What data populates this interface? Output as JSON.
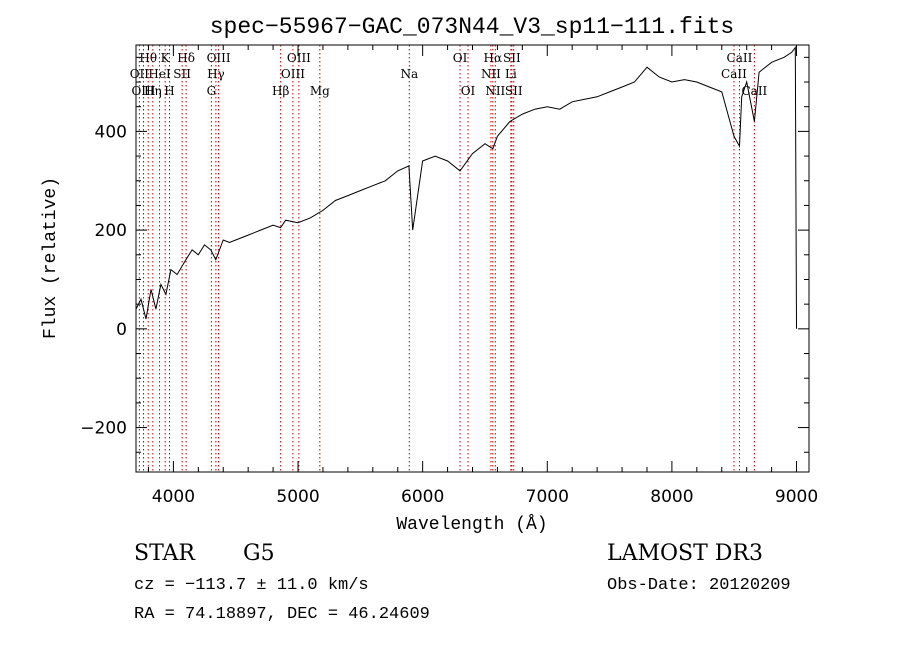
{
  "chart_data": {
    "type": "line",
    "title": "spec−55967−GAC_073N44_V3_sp11−111.fits",
    "xlabel": "Wavelength (Å)",
    "ylabel": "Flux (relative)",
    "xlim": [
      3700,
      9100
    ],
    "ylim": [
      -290,
      575
    ],
    "x_ticks": [
      4000,
      5000,
      6000,
      7000,
      8000,
      9000
    ],
    "x_tick_labels": [
      "4000",
      "5000",
      "6000",
      "7000",
      "8000",
      "9000"
    ],
    "y_ticks": [
      -200,
      0,
      200,
      400
    ],
    "y_tick_labels": [
      "−200",
      "0",
      "200",
      "400"
    ],
    "x_minor_step": 200,
    "y_minor_step": 50,
    "series": [
      {
        "name": "flux",
        "color": "#000000",
        "x": [
          3700,
          3740,
          3780,
          3820,
          3860,
          3900,
          3940,
          3980,
          4030,
          4100,
          4150,
          4200,
          4250,
          4300,
          4340,
          4400,
          4450,
          4500,
          4600,
          4700,
          4800,
          4860,
          4900,
          5000,
          5100,
          5200,
          5300,
          5400,
          5500,
          5600,
          5700,
          5800,
          5890,
          5920,
          6000,
          6100,
          6200,
          6300,
          6400,
          6500,
          6563,
          6600,
          6700,
          6800,
          6900,
          7000,
          7100,
          7200,
          7300,
          7400,
          7500,
          7600,
          7700,
          7800,
          7900,
          8000,
          8100,
          8200,
          8300,
          8400,
          8498,
          8542,
          8560,
          8600,
          8662,
          8700,
          8800,
          8900,
          8960,
          8990,
          9000
        ],
        "y": [
          40,
          60,
          20,
          80,
          40,
          90,
          70,
          120,
          110,
          140,
          160,
          150,
          170,
          160,
          140,
          180,
          175,
          180,
          190,
          200,
          210,
          205,
          220,
          215,
          225,
          240,
          260,
          270,
          280,
          290,
          300,
          320,
          330,
          200,
          340,
          350,
          340,
          320,
          355,
          375,
          365,
          390,
          420,
          435,
          445,
          450,
          445,
          460,
          465,
          470,
          480,
          490,
          500,
          530,
          510,
          500,
          505,
          500,
          490,
          480,
          390,
          370,
          470,
          500,
          420,
          520,
          540,
          550,
          560,
          570,
          0
        ]
      }
    ],
    "spectral_lines": [
      {
        "label": "Hθ",
        "wavelength": 3798,
        "row": 1
      },
      {
        "label": "OII",
        "wavelength": 3727,
        "row": 2
      },
      {
        "label": "OIII",
        "wavelength": 3760,
        "row": 3
      },
      {
        "label": "K",
        "wavelength": 3934,
        "row": 1
      },
      {
        "label": "HeI",
        "wavelength": 3889,
        "row": 2
      },
      {
        "label": "Hη",
        "wavelength": 3835,
        "row": 3
      },
      {
        "label": "H",
        "wavelength": 3969,
        "row": 3
      },
      {
        "label": "Hδ",
        "wavelength": 4102,
        "row": 1
      },
      {
        "label": "SII",
        "wavelength": 4070,
        "row": 2
      },
      {
        "label": "OIII",
        "wavelength": 4363,
        "row": 1
      },
      {
        "label": "Hγ",
        "wavelength": 4341,
        "row": 2
      },
      {
        "label": "G",
        "wavelength": 4305,
        "row": 3
      },
      {
        "label": "Hβ",
        "wavelength": 4861,
        "row": 3
      },
      {
        "label": "OIII",
        "wavelength": 5007,
        "row": 1
      },
      {
        "label": "OIII",
        "wavelength": 4959,
        "row": 2
      },
      {
        "label": "Mg",
        "wavelength": 5175,
        "row": 3
      },
      {
        "label": "Na",
        "wavelength": 5893,
        "row": 2
      },
      {
        "label": "OI",
        "wavelength": 6300,
        "row": 1
      },
      {
        "label": "OI",
        "wavelength": 6364,
        "row": 3
      },
      {
        "label": "Hα",
        "wavelength": 6563,
        "row": 1
      },
      {
        "label": "SII",
        "wavelength": 6716,
        "row": 1
      },
      {
        "label": "NII",
        "wavelength": 6548,
        "row": 2
      },
      {
        "label": "Li",
        "wavelength": 6708,
        "row": 2
      },
      {
        "label": "NII",
        "wavelength": 6583,
        "row": 3
      },
      {
        "label": "SII",
        "wavelength": 6731,
        "row": 3
      },
      {
        "label": "CaII",
        "wavelength": 8542,
        "row": 1
      },
      {
        "label": "CaII",
        "wavelength": 8498,
        "row": 2
      },
      {
        "label": "CaII",
        "wavelength": 8662,
        "row": 3
      }
    ],
    "line_marker_color": "#c00000"
  },
  "info": {
    "class": "STAR",
    "subclass": "G5",
    "survey": "LAMOST DR3",
    "redshift_line": "cz = −113.7 ± 11.0 km/s",
    "obs_date": "Obs-Date: 20120209",
    "coords": "RA =  74.18897, DEC =  46.24609"
  }
}
